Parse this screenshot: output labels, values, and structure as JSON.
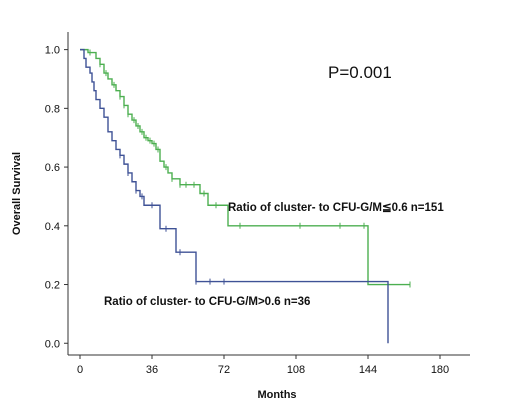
{
  "chart_data": {
    "type": "line",
    "step": true,
    "xlabel": "Months",
    "ylabel": "Overall Survival",
    "xlim": [
      -6,
      195
    ],
    "ylim": [
      -0.04,
      1.06
    ],
    "xticks": [
      "0",
      "36",
      "72",
      "108",
      "144",
      "180"
    ],
    "yticks": [
      "0.0",
      "0.2",
      "0.4",
      "0.6",
      "0.8",
      "1.0"
    ],
    "grid": false,
    "legend": "none",
    "annotations": [
      "P=0.001"
    ],
    "colors": {
      "series_low": "#4caf50",
      "series_high": "#3f5296",
      "axis": "#333333"
    },
    "series": [
      {
        "name": "Ratio of cluster- to CFU-G/M≦0.6 n=151",
        "x": [
          0,
          4,
          8,
          10,
          12,
          14,
          16,
          18,
          20,
          22,
          24,
          26,
          28,
          30,
          32,
          34,
          36,
          38,
          40,
          42,
          44,
          46,
          48,
          50,
          52,
          54,
          56,
          58,
          60,
          62,
          64,
          66,
          74,
          80,
          100,
          120,
          140,
          144,
          160,
          165
        ],
        "y": [
          1.0,
          0.99,
          0.97,
          0.95,
          0.92,
          0.9,
          0.88,
          0.86,
          0.84,
          0.81,
          0.78,
          0.76,
          0.74,
          0.72,
          0.7,
          0.69,
          0.68,
          0.66,
          0.62,
          0.6,
          0.58,
          0.56,
          0.56,
          0.54,
          0.54,
          0.54,
          0.54,
          0.54,
          0.51,
          0.51,
          0.47,
          0.47,
          0.4,
          0.4,
          0.4,
          0.4,
          0.4,
          0.2,
          0.2,
          0.2
        ]
      },
      {
        "name": "Ratio of cluster- to CFU-G/M>0.6 n=36",
        "x": [
          0,
          2,
          3,
          5,
          6,
          7,
          8,
          10,
          12,
          14,
          16,
          18,
          20,
          22,
          24,
          26,
          28,
          30,
          32,
          34,
          36,
          38,
          40,
          44,
          48,
          55,
          58,
          60,
          80,
          100,
          120,
          140,
          152,
          154
        ],
        "y": [
          1.0,
          0.97,
          0.94,
          0.92,
          0.89,
          0.86,
          0.83,
          0.8,
          0.77,
          0.72,
          0.69,
          0.66,
          0.64,
          0.61,
          0.58,
          0.55,
          0.52,
          0.5,
          0.47,
          0.47,
          0.47,
          0.47,
          0.39,
          0.39,
          0.31,
          0.31,
          0.21,
          0.21,
          0.21,
          0.21,
          0.21,
          0.21,
          0.21,
          0.0
        ]
      }
    ],
    "censor_marks": [
      {
        "series": 0,
        "x": [
          5,
          10,
          13,
          17,
          20,
          22,
          24,
          27,
          29,
          31,
          33,
          35,
          37,
          39,
          43,
          46,
          50,
          53,
          57,
          62,
          68,
          80,
          110,
          130,
          142,
          165
        ]
      },
      {
        "series": 1,
        "x": [
          20,
          24,
          28,
          31,
          36,
          43,
          50,
          58,
          65,
          72
        ]
      }
    ]
  }
}
